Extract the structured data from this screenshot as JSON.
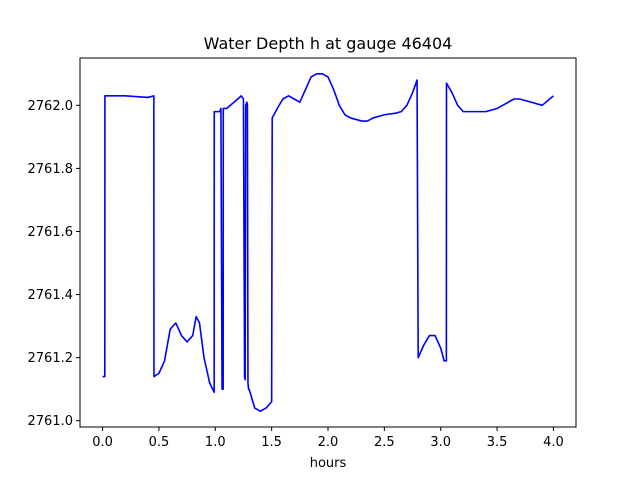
{
  "chart_data": {
    "type": "line",
    "title": "Water Depth h at gauge 46404",
    "xlabel": "hours",
    "ylabel": "",
    "xlim": [
      -0.2,
      4.2
    ],
    "ylim": [
      2760.98,
      2762.15
    ],
    "xticks": [
      0.0,
      0.5,
      1.0,
      1.5,
      2.0,
      2.5,
      3.0,
      3.5,
      4.0
    ],
    "xtick_labels": [
      "0.0",
      "0.5",
      "1.0",
      "1.5",
      "2.0",
      "2.5",
      "3.0",
      "3.5",
      "4.0"
    ],
    "yticks": [
      2761.0,
      2761.2,
      2761.4,
      2761.6,
      2761.8,
      2762.0
    ],
    "ytick_labels": [
      "2761.0",
      "2761.2",
      "2761.4",
      "2761.6",
      "2761.8",
      "2762.0"
    ],
    "grid": false,
    "series": [
      {
        "color": "#0000ff",
        "x": [
          0.0,
          0.02,
          0.021,
          0.2,
          0.4,
          0.455,
          0.456,
          0.5,
          0.55,
          0.6,
          0.65,
          0.7,
          0.75,
          0.8,
          0.83,
          0.86,
          0.9,
          0.95,
          0.99,
          0.991,
          1.04,
          1.05,
          1.06,
          1.07,
          1.071,
          1.08,
          1.1,
          1.2,
          1.23,
          1.25,
          1.26,
          1.265,
          1.27,
          1.28,
          1.285,
          1.29,
          1.295,
          1.3,
          1.35,
          1.4,
          1.45,
          1.5,
          1.505,
          1.55,
          1.6,
          1.65,
          1.7,
          1.75,
          1.8,
          1.85,
          1.9,
          1.95,
          2.0,
          2.05,
          2.1,
          2.15,
          2.2,
          2.3,
          2.35,
          2.4,
          2.5,
          2.6,
          2.65,
          2.7,
          2.75,
          2.79,
          2.8,
          2.85,
          2.9,
          2.95,
          3.0,
          3.03,
          3.05,
          3.051,
          3.1,
          3.15,
          3.2,
          3.3,
          3.4,
          3.5,
          3.6,
          3.65,
          3.7,
          3.8,
          3.9,
          4.0
        ],
        "y": [
          2761.14,
          2761.14,
          2762.03,
          2762.03,
          2762.025,
          2762.03,
          2761.14,
          2761.15,
          2761.19,
          2761.29,
          2761.31,
          2761.27,
          2761.25,
          2761.27,
          2761.33,
          2761.31,
          2761.2,
          2761.12,
          2761.09,
          2761.98,
          2761.98,
          2761.99,
          2761.1,
          2761.1,
          2761.99,
          2761.99,
          2761.99,
          2762.02,
          2762.03,
          2762.02,
          2761.14,
          2761.13,
          2762.0,
          2762.01,
          2762.0,
          2761.12,
          2761.1,
          2761.1,
          2761.04,
          2761.03,
          2761.04,
          2761.06,
          2761.96,
          2761.99,
          2762.02,
          2762.03,
          2762.02,
          2762.01,
          2762.05,
          2762.09,
          2762.1,
          2762.1,
          2762.09,
          2762.05,
          2762.0,
          2761.97,
          2761.96,
          2761.95,
          2761.95,
          2761.96,
          2761.97,
          2761.975,
          2761.98,
          2762.0,
          2762.04,
          2762.08,
          2761.2,
          2761.24,
          2761.27,
          2761.27,
          2761.23,
          2761.19,
          2761.19,
          2762.07,
          2762.04,
          2762.0,
          2761.98,
          2761.98,
          2761.98,
          2761.99,
          2762.01,
          2762.02,
          2762.02,
          2762.01,
          2762.0,
          2762.03
        ]
      }
    ]
  }
}
